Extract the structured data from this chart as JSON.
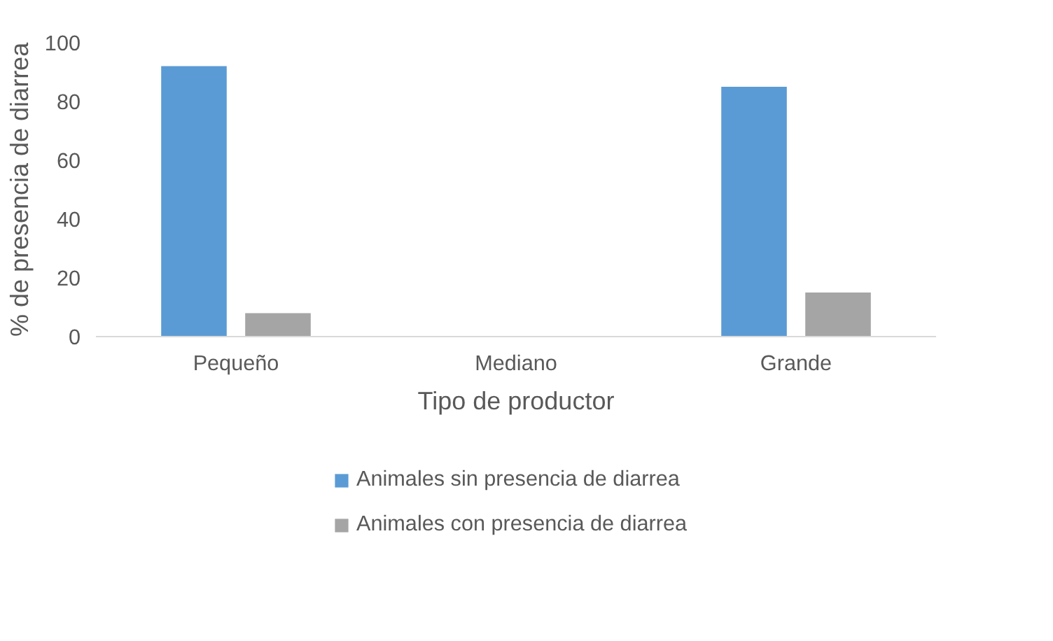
{
  "chart_data": {
    "type": "bar",
    "xlabel": "Tipo de productor",
    "ylabel": "% de presencia de diarrea",
    "categories": [
      "Pequeño",
      "Mediano",
      "Grande"
    ],
    "series": [
      {
        "name": "Animales sin presencia de diarrea",
        "color": "#5b9bd5",
        "values": [
          92,
          null,
          85
        ]
      },
      {
        "name": "Animales con presencia de diarrea",
        "color": "#a5a5a5",
        "values": [
          8,
          null,
          15
        ]
      }
    ],
    "ylim": [
      0,
      100
    ],
    "yticks": [
      0,
      20,
      40,
      60,
      80,
      100
    ],
    "grid": false,
    "legend": "bottom"
  }
}
